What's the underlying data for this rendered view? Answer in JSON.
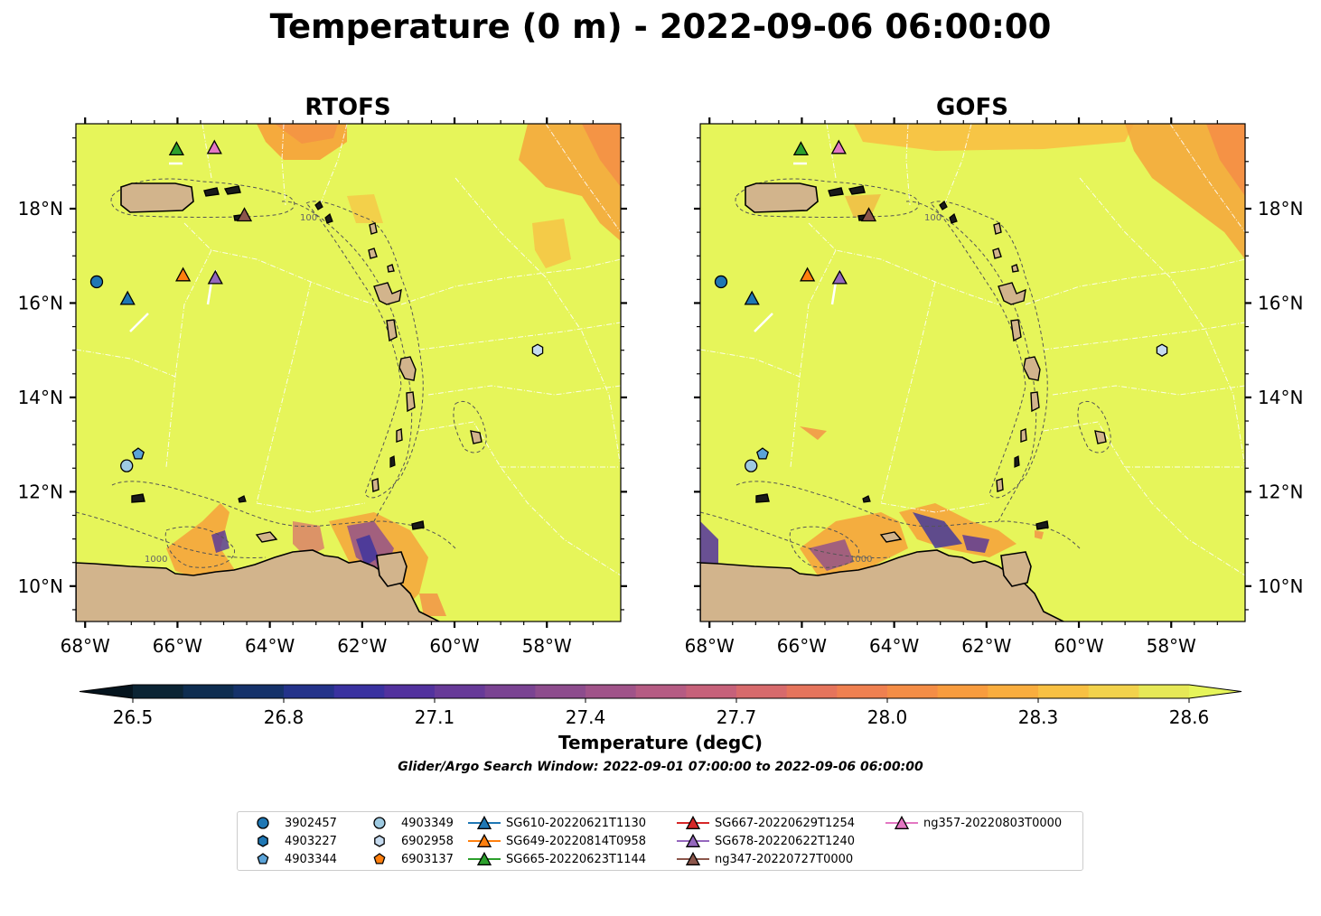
{
  "title": "Temperature (0 m) - 2022-09-06 06:00:00",
  "panels": [
    {
      "title": "RTOFS",
      "lat_label_side": "left"
    },
    {
      "title": "GOFS",
      "lat_label_side": "right"
    }
  ],
  "map_extent": {
    "lon": [
      -68.2,
      -56.4
    ],
    "lat": [
      9.25,
      19.8
    ]
  },
  "lon_ticks": [
    {
      "value": -68,
      "label": "68°W"
    },
    {
      "value": -66,
      "label": "66°W"
    },
    {
      "value": -64,
      "label": "64°W"
    },
    {
      "value": -62,
      "label": "62°W"
    },
    {
      "value": -60,
      "label": "60°W"
    },
    {
      "value": -58,
      "label": "58°W"
    }
  ],
  "lat_ticks": [
    {
      "value": 18,
      "label": "18°N"
    },
    {
      "value": 16,
      "label": "16°N"
    },
    {
      "value": 14,
      "label": "14°N"
    },
    {
      "value": 12,
      "label": "12°N"
    },
    {
      "value": 10,
      "label": "10°N"
    }
  ],
  "contour_labels": [
    "100",
    "1000"
  ],
  "colors": {
    "ocean": "#e6f55a",
    "land": "#d2b48c",
    "warm": "#f5a53c",
    "cool": "#3a3090"
  },
  "colorbar": {
    "min": 26.5,
    "max": 28.6,
    "ticks": [
      "26.5",
      "26.8",
      "27.1",
      "27.4",
      "27.7",
      "28.0",
      "28.3",
      "28.6"
    ],
    "label": "Temperature (degC)",
    "colors": [
      "#0b2434",
      "#0e2d50",
      "#15326a",
      "#24338a",
      "#3a32a0",
      "#52329e",
      "#673a98",
      "#7a4392",
      "#8d4c8d",
      "#a05389",
      "#b55b83",
      "#c6617a",
      "#d76a6c",
      "#e5745c",
      "#ef8050",
      "#f48d46",
      "#f89c3e",
      "#f9ad3e",
      "#f8c043",
      "#f2d24c",
      "#e6e857"
    ],
    "under_color": "#05141e",
    "over_color": "#e6f55a"
  },
  "search_window": "Glider/Argo Search Window: 2022-09-01 07:00:00 to 2022-09-06 06:00:00",
  "legend": [
    {
      "label": "3902457",
      "marker": "circle",
      "color": "#1f77b4",
      "line": false
    },
    {
      "label": "4903227",
      "marker": "hexagon",
      "color": "#1f77b4",
      "line": false
    },
    {
      "label": "4903344",
      "marker": "pentagon",
      "color": "#5ba3d8",
      "line": false
    },
    {
      "label": "4903349",
      "marker": "circle",
      "color": "#9ecae1",
      "line": false
    },
    {
      "label": "6902958",
      "marker": "hexagon",
      "color": "#c6dbef",
      "line": false
    },
    {
      "label": "6903137",
      "marker": "pentagon",
      "color": "#ff7f0e",
      "line": false
    },
    {
      "label": "SG610-20220621T1130",
      "marker": "triangle",
      "color": "#1f77b4",
      "line": true
    },
    {
      "label": "SG649-20220814T0958",
      "marker": "triangle",
      "color": "#ff7f0e",
      "line": true
    },
    {
      "label": "SG665-20220623T1144",
      "marker": "triangle",
      "color": "#2ca02c",
      "line": true
    },
    {
      "label": "SG667-20220629T1254",
      "marker": "triangle",
      "color": "#d62728",
      "line": true
    },
    {
      "label": "SG678-20220622T1240",
      "marker": "triangle",
      "color": "#9467bd",
      "line": true
    },
    {
      "label": "ng347-20220727T0000",
      "marker": "triangle",
      "color": "#8c564b",
      "line": true
    },
    {
      "label": "ng357-20220803T0000",
      "marker": "triangle",
      "color": "#e377c2",
      "line": true
    }
  ],
  "observations": [
    {
      "lon": -67.75,
      "lat": 16.45,
      "marker": "circle",
      "color": "#1f77b4"
    },
    {
      "lon": -67.1,
      "lat": 12.55,
      "marker": "circle",
      "color": "#9ecae1"
    },
    {
      "lon": -66.85,
      "lat": 12.8,
      "marker": "pentagon",
      "color": "#5ba3d8"
    },
    {
      "lon": -58.2,
      "lat": 15.0,
      "marker": "hexagon",
      "color": "#c6dbef"
    },
    {
      "lon": -67.08,
      "lat": 16.08,
      "marker": "triangle",
      "color": "#1f77b4"
    },
    {
      "lon": -65.88,
      "lat": 16.58,
      "marker": "triangle",
      "color": "#ff7f0e"
    },
    {
      "lon": -65.18,
      "lat": 16.52,
      "marker": "triangle",
      "color": "#9467bd"
    },
    {
      "lon": -66.02,
      "lat": 19.25,
      "marker": "triangle",
      "color": "#2ca02c"
    },
    {
      "lon": -65.2,
      "lat": 19.28,
      "marker": "triangle",
      "color": "#e377c2"
    },
    {
      "lon": -64.55,
      "lat": 17.85,
      "marker": "triangle",
      "color": "#8c564b"
    }
  ]
}
